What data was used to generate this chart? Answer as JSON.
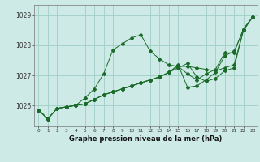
{
  "title": "Graphe pression niveau de la mer (hPa)",
  "background_color": "#ceeae6",
  "grid_color": "#9ecfc8",
  "line_color": "#1a6b2a",
  "x_labels": [
    "0",
    "1",
    "2",
    "3",
    "4",
    "5",
    "6",
    "7",
    "8",
    "9",
    "10",
    "11",
    "12",
    "13",
    "14",
    "15",
    "16",
    "17",
    "18",
    "19",
    "20",
    "21",
    "22",
    "23"
  ],
  "y_ticks": [
    1026,
    1027,
    1028,
    1029
  ],
  "ylim": [
    1025.3,
    1029.35
  ],
  "xlim": [
    -0.5,
    23.5
  ],
  "lines": [
    [
      1025.85,
      1025.55,
      1025.9,
      1025.95,
      1026.0,
      1026.25,
      1026.55,
      1027.05,
      1027.85,
      1028.05,
      1028.25,
      1028.35,
      1027.8,
      1027.55,
      1027.35,
      1027.3,
      1027.05,
      1026.85,
      1027.05,
      1027.2,
      1027.75,
      1027.75,
      1028.55,
      1028.95
    ],
    [
      1025.85,
      1025.55,
      1025.9,
      1025.95,
      1026.0,
      1026.05,
      1026.2,
      1026.35,
      1026.45,
      1026.55,
      1026.65,
      1026.75,
      1026.85,
      1026.95,
      1027.1,
      1027.25,
      1027.4,
      1026.95,
      1026.8,
      1026.9,
      1027.15,
      1027.25,
      1028.5,
      1028.95
    ],
    [
      1025.85,
      1025.55,
      1025.9,
      1025.95,
      1026.0,
      1026.05,
      1026.2,
      1026.35,
      1026.45,
      1026.55,
      1026.65,
      1026.75,
      1026.85,
      1026.95,
      1027.1,
      1027.35,
      1026.6,
      1026.65,
      1026.85,
      1027.1,
      1027.65,
      1027.8,
      1028.5,
      1028.95
    ],
    [
      1025.85,
      1025.55,
      1025.9,
      1025.95,
      1026.0,
      1026.05,
      1026.2,
      1026.35,
      1026.45,
      1026.55,
      1026.65,
      1026.75,
      1026.85,
      1026.95,
      1027.1,
      1027.3,
      1027.3,
      1027.25,
      1027.2,
      1027.15,
      1027.25,
      1027.35,
      1028.5,
      1028.95
    ]
  ],
  "title_fontsize": 6.0,
  "ytick_fontsize": 5.5,
  "xtick_fontsize": 4.2
}
